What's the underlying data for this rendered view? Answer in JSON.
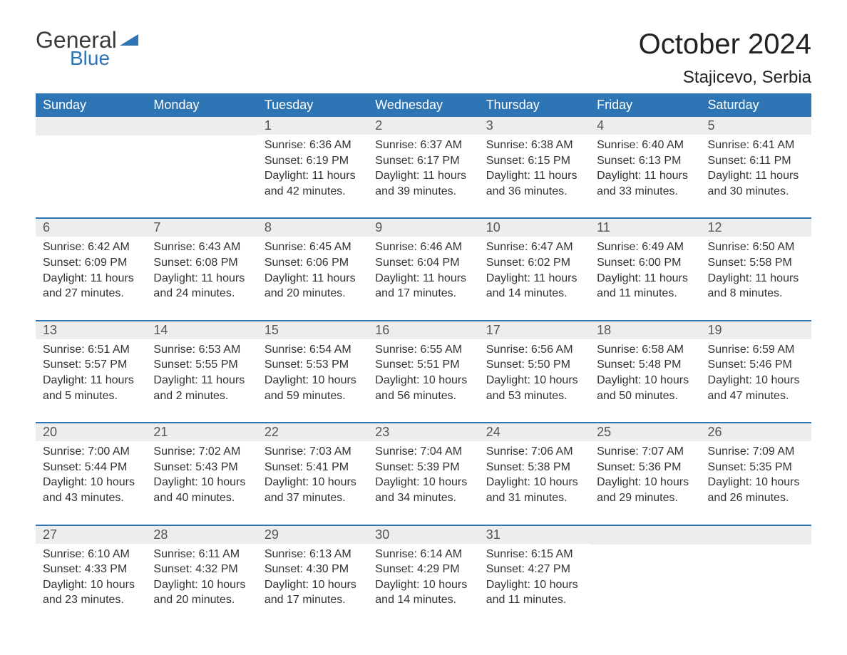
{
  "logo": {
    "word1": "General",
    "word2": "Blue",
    "triangle_color": "#2e75b6"
  },
  "title": "October 2024",
  "location": "Stajicevo, Serbia",
  "colors": {
    "header_bg": "#2e75b6",
    "header_text": "#ffffff",
    "daynum_bg": "#ededed",
    "daynum_text": "#555555",
    "body_text": "#333333",
    "row_divider": "#2e75b6",
    "page_bg": "#ffffff"
  },
  "typography": {
    "title_fontsize": 40,
    "location_fontsize": 24,
    "weekday_header_fontsize": 18,
    "daynum_fontsize": 18,
    "body_fontsize": 16
  },
  "columns": [
    "Sunday",
    "Monday",
    "Tuesday",
    "Wednesday",
    "Thursday",
    "Friday",
    "Saturday"
  ],
  "weeks": [
    [
      null,
      null,
      {
        "n": "1",
        "sunrise": "Sunrise: 6:36 AM",
        "sunset": "Sunset: 6:19 PM",
        "dl1": "Daylight: 11 hours",
        "dl2": "and 42 minutes."
      },
      {
        "n": "2",
        "sunrise": "Sunrise: 6:37 AM",
        "sunset": "Sunset: 6:17 PM",
        "dl1": "Daylight: 11 hours",
        "dl2": "and 39 minutes."
      },
      {
        "n": "3",
        "sunrise": "Sunrise: 6:38 AM",
        "sunset": "Sunset: 6:15 PM",
        "dl1": "Daylight: 11 hours",
        "dl2": "and 36 minutes."
      },
      {
        "n": "4",
        "sunrise": "Sunrise: 6:40 AM",
        "sunset": "Sunset: 6:13 PM",
        "dl1": "Daylight: 11 hours",
        "dl2": "and 33 minutes."
      },
      {
        "n": "5",
        "sunrise": "Sunrise: 6:41 AM",
        "sunset": "Sunset: 6:11 PM",
        "dl1": "Daylight: 11 hours",
        "dl2": "and 30 minutes."
      }
    ],
    [
      {
        "n": "6",
        "sunrise": "Sunrise: 6:42 AM",
        "sunset": "Sunset: 6:09 PM",
        "dl1": "Daylight: 11 hours",
        "dl2": "and 27 minutes."
      },
      {
        "n": "7",
        "sunrise": "Sunrise: 6:43 AM",
        "sunset": "Sunset: 6:08 PM",
        "dl1": "Daylight: 11 hours",
        "dl2": "and 24 minutes."
      },
      {
        "n": "8",
        "sunrise": "Sunrise: 6:45 AM",
        "sunset": "Sunset: 6:06 PM",
        "dl1": "Daylight: 11 hours",
        "dl2": "and 20 minutes."
      },
      {
        "n": "9",
        "sunrise": "Sunrise: 6:46 AM",
        "sunset": "Sunset: 6:04 PM",
        "dl1": "Daylight: 11 hours",
        "dl2": "and 17 minutes."
      },
      {
        "n": "10",
        "sunrise": "Sunrise: 6:47 AM",
        "sunset": "Sunset: 6:02 PM",
        "dl1": "Daylight: 11 hours",
        "dl2": "and 14 minutes."
      },
      {
        "n": "11",
        "sunrise": "Sunrise: 6:49 AM",
        "sunset": "Sunset: 6:00 PM",
        "dl1": "Daylight: 11 hours",
        "dl2": "and 11 minutes."
      },
      {
        "n": "12",
        "sunrise": "Sunrise: 6:50 AM",
        "sunset": "Sunset: 5:58 PM",
        "dl1": "Daylight: 11 hours",
        "dl2": "and 8 minutes."
      }
    ],
    [
      {
        "n": "13",
        "sunrise": "Sunrise: 6:51 AM",
        "sunset": "Sunset: 5:57 PM",
        "dl1": "Daylight: 11 hours",
        "dl2": "and 5 minutes."
      },
      {
        "n": "14",
        "sunrise": "Sunrise: 6:53 AM",
        "sunset": "Sunset: 5:55 PM",
        "dl1": "Daylight: 11 hours",
        "dl2": "and 2 minutes."
      },
      {
        "n": "15",
        "sunrise": "Sunrise: 6:54 AM",
        "sunset": "Sunset: 5:53 PM",
        "dl1": "Daylight: 10 hours",
        "dl2": "and 59 minutes."
      },
      {
        "n": "16",
        "sunrise": "Sunrise: 6:55 AM",
        "sunset": "Sunset: 5:51 PM",
        "dl1": "Daylight: 10 hours",
        "dl2": "and 56 minutes."
      },
      {
        "n": "17",
        "sunrise": "Sunrise: 6:56 AM",
        "sunset": "Sunset: 5:50 PM",
        "dl1": "Daylight: 10 hours",
        "dl2": "and 53 minutes."
      },
      {
        "n": "18",
        "sunrise": "Sunrise: 6:58 AM",
        "sunset": "Sunset: 5:48 PM",
        "dl1": "Daylight: 10 hours",
        "dl2": "and 50 minutes."
      },
      {
        "n": "19",
        "sunrise": "Sunrise: 6:59 AM",
        "sunset": "Sunset: 5:46 PM",
        "dl1": "Daylight: 10 hours",
        "dl2": "and 47 minutes."
      }
    ],
    [
      {
        "n": "20",
        "sunrise": "Sunrise: 7:00 AM",
        "sunset": "Sunset: 5:44 PM",
        "dl1": "Daylight: 10 hours",
        "dl2": "and 43 minutes."
      },
      {
        "n": "21",
        "sunrise": "Sunrise: 7:02 AM",
        "sunset": "Sunset: 5:43 PM",
        "dl1": "Daylight: 10 hours",
        "dl2": "and 40 minutes."
      },
      {
        "n": "22",
        "sunrise": "Sunrise: 7:03 AM",
        "sunset": "Sunset: 5:41 PM",
        "dl1": "Daylight: 10 hours",
        "dl2": "and 37 minutes."
      },
      {
        "n": "23",
        "sunrise": "Sunrise: 7:04 AM",
        "sunset": "Sunset: 5:39 PM",
        "dl1": "Daylight: 10 hours",
        "dl2": "and 34 minutes."
      },
      {
        "n": "24",
        "sunrise": "Sunrise: 7:06 AM",
        "sunset": "Sunset: 5:38 PM",
        "dl1": "Daylight: 10 hours",
        "dl2": "and 31 minutes."
      },
      {
        "n": "25",
        "sunrise": "Sunrise: 7:07 AM",
        "sunset": "Sunset: 5:36 PM",
        "dl1": "Daylight: 10 hours",
        "dl2": "and 29 minutes."
      },
      {
        "n": "26",
        "sunrise": "Sunrise: 7:09 AM",
        "sunset": "Sunset: 5:35 PM",
        "dl1": "Daylight: 10 hours",
        "dl2": "and 26 minutes."
      }
    ],
    [
      {
        "n": "27",
        "sunrise": "Sunrise: 6:10 AM",
        "sunset": "Sunset: 4:33 PM",
        "dl1": "Daylight: 10 hours",
        "dl2": "and 23 minutes."
      },
      {
        "n": "28",
        "sunrise": "Sunrise: 6:11 AM",
        "sunset": "Sunset: 4:32 PM",
        "dl1": "Daylight: 10 hours",
        "dl2": "and 20 minutes."
      },
      {
        "n": "29",
        "sunrise": "Sunrise: 6:13 AM",
        "sunset": "Sunset: 4:30 PM",
        "dl1": "Daylight: 10 hours",
        "dl2": "and 17 minutes."
      },
      {
        "n": "30",
        "sunrise": "Sunrise: 6:14 AM",
        "sunset": "Sunset: 4:29 PM",
        "dl1": "Daylight: 10 hours",
        "dl2": "and 14 minutes."
      },
      {
        "n": "31",
        "sunrise": "Sunrise: 6:15 AM",
        "sunset": "Sunset: 4:27 PM",
        "dl1": "Daylight: 10 hours",
        "dl2": "and 11 minutes."
      },
      null,
      null
    ]
  ]
}
